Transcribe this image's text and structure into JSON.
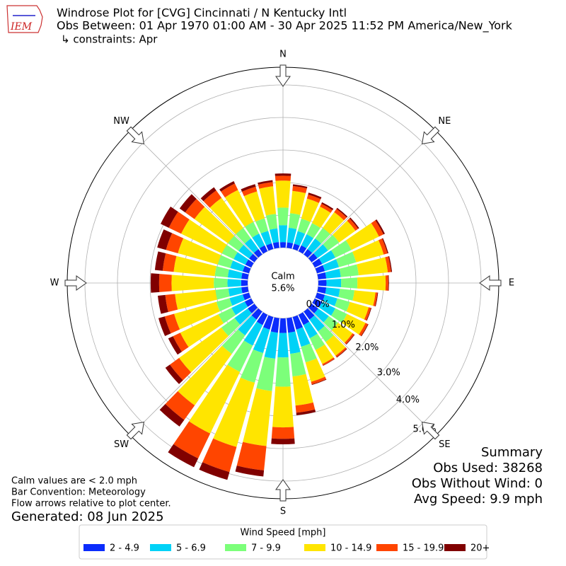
{
  "header": {
    "logo": "IEM",
    "title": "Windrose Plot for [CVG] Cincinnati / N Kentucky Intl",
    "subtitle": "Obs Between: 01 Apr 1970 01:00 AM - 30 Apr 2025 11:52 PM America/New_York",
    "constraints": "↳ constraints: Apr"
  },
  "chart_data": {
    "type": "windrose",
    "compass_labels": [
      "N",
      "NE",
      "E",
      "SE",
      "S",
      "SW",
      "W",
      "NW"
    ],
    "calm": {
      "label": "Calm",
      "value": 5.6,
      "value_label": "5.6%"
    },
    "ylim": [
      0,
      5.5
    ],
    "yticks": [
      {
        "value": 0,
        "label": "0.0%"
      },
      {
        "value": 1,
        "label": "1.0%"
      },
      {
        "value": 2,
        "label": "2.0%"
      },
      {
        "value": 3,
        "label": "3.0%"
      },
      {
        "value": 4,
        "label": "4.0%"
      },
      {
        "value": 5,
        "label": "5.0%"
      }
    ],
    "grid": true,
    "legend_title": "Wind Speed [mph]",
    "series": [
      {
        "name": "2 - 4.9",
        "color": "#0b2cfc",
        "values": [
          0.17,
          0.17,
          0.17,
          0.2,
          0.2,
          0.22,
          0.25,
          0.25,
          0.25,
          0.25,
          0.25,
          0.25,
          0.25,
          0.25,
          0.3,
          0.35,
          0.4,
          0.45,
          0.45,
          0.45,
          0.4,
          0.35,
          0.3,
          0.25,
          0.22,
          0.2,
          0.2,
          0.2,
          0.2,
          0.2,
          0.2,
          0.2,
          0.2,
          0.2,
          0.18,
          0.18
        ]
      },
      {
        "name": "5 - 6.9",
        "color": "#00d2f7",
        "values": [
          0.52,
          0.45,
          0.4,
          0.38,
          0.4,
          0.4,
          0.45,
          0.45,
          0.45,
          0.45,
          0.42,
          0.4,
          0.45,
          0.4,
          0.45,
          0.45,
          0.55,
          0.65,
          0.75,
          0.8,
          0.75,
          0.7,
          0.6,
          0.5,
          0.45,
          0.42,
          0.4,
          0.42,
          0.42,
          0.4,
          0.4,
          0.4,
          0.4,
          0.4,
          0.4,
          0.42
        ]
      },
      {
        "name": "7 - 9.9",
        "color": "#7cff7a",
        "values": [
          0.54,
          0.45,
          0.4,
          0.38,
          0.4,
          0.42,
          0.55,
          0.55,
          0.55,
          0.5,
          0.45,
          0.4,
          0.4,
          0.35,
          0.4,
          0.4,
          0.5,
          0.7,
          0.9,
          1.0,
          0.95,
          0.9,
          0.7,
          0.5,
          0.45,
          0.42,
          0.4,
          0.42,
          0.4,
          0.4,
          0.4,
          0.4,
          0.4,
          0.4,
          0.4,
          0.45
        ]
      },
      {
        "name": "10 - 14.9",
        "color": "#ffe500",
        "values": [
          0.83,
          0.69,
          0.64,
          0.56,
          0.6,
          0.62,
          0.94,
          0.88,
          0.9,
          0.87,
          0.65,
          0.6,
          0.63,
          0.55,
          0.52,
          0.48,
          0.62,
          0.9,
          1.25,
          1.7,
          2.05,
          2.1,
          1.95,
          1.6,
          1.3,
          1.35,
          1.25,
          1.3,
          1.27,
          1.27,
          1.39,
          1.27,
          1.14,
          1.09,
          0.86,
          0.85
        ]
      },
      {
        "name": "15 - 19.9",
        "color": "#ff4500",
        "values": [
          0.15,
          0.15,
          0.13,
          0.1,
          0.12,
          0.1,
          0.15,
          0.12,
          0.1,
          0.08,
          0.06,
          0.07,
          0.08,
          0.06,
          0.05,
          0.05,
          0.08,
          0.22,
          0.35,
          0.75,
          0.8,
          0.85,
          0.55,
          0.35,
          0.25,
          0.3,
          0.3,
          0.38,
          0.34,
          0.38,
          0.42,
          0.35,
          0.28,
          0.22,
          0.15,
          0.13
        ]
      },
      {
        "name": "20+",
        "color": "#800000",
        "values": [
          0.07,
          0.05,
          0.06,
          0.05,
          0.04,
          0.04,
          0.05,
          0.03,
          0.03,
          0.02,
          0.02,
          0.02,
          0.02,
          0.02,
          0.02,
          0.01,
          0.02,
          0.08,
          0.17,
          0.19,
          0.25,
          0.3,
          0.25,
          0.17,
          0.16,
          0.2,
          0.23,
          0.26,
          0.24,
          0.28,
          0.28,
          0.21,
          0.12,
          0.08,
          0.08,
          0.06
        ]
      }
    ]
  },
  "summary": [
    "Summary",
    "Obs Used: 38268",
    "Obs Without Wind: 0",
    "Avg Speed: 9.9 mph"
  ],
  "notes": [
    "Calm values are < 2.0 mph",
    "Bar Convention: Meteorology",
    "Flow arrows relative to plot center."
  ],
  "generated": "Generated: 08 Jun 2025"
}
